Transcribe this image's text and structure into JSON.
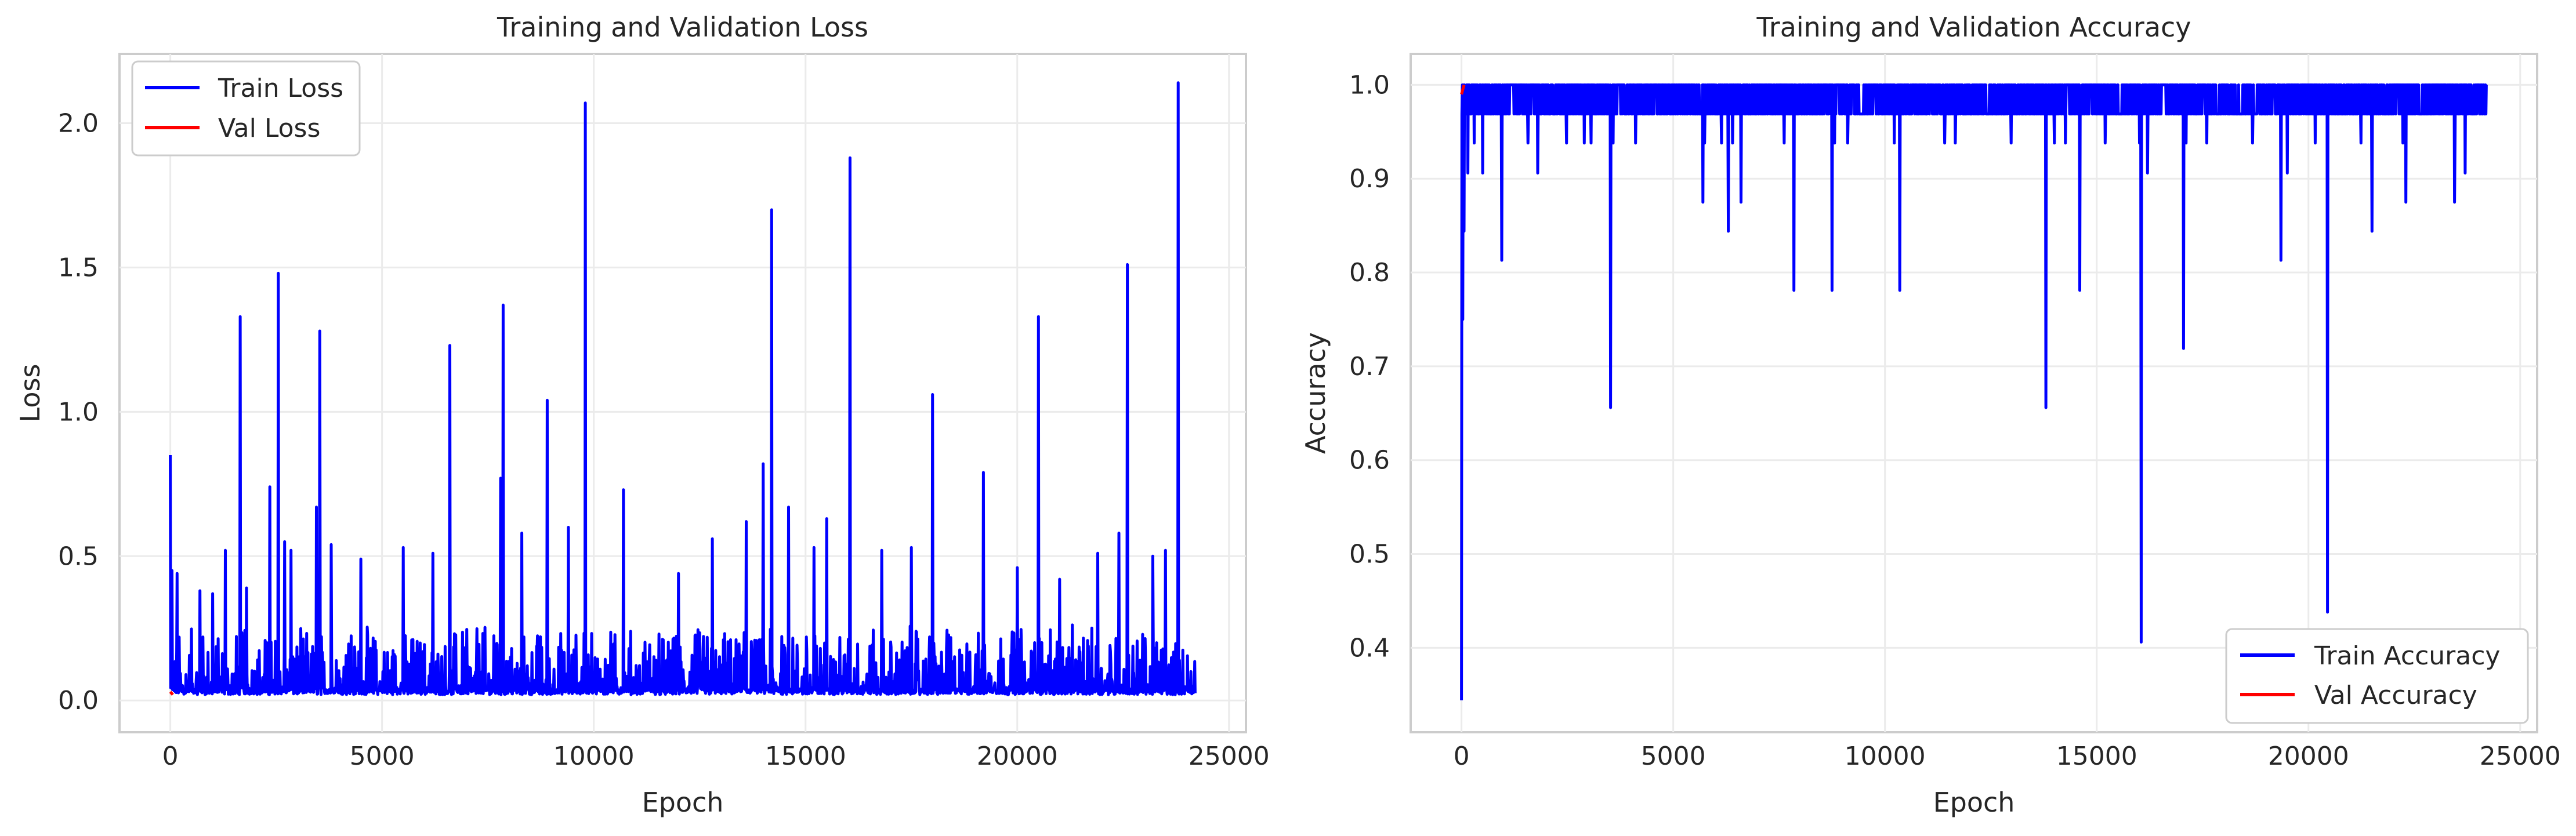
{
  "figure": {
    "background": "#ffffff"
  },
  "chart_data": [
    {
      "type": "line",
      "title": "Training and Validation Loss",
      "xlabel": "Epoch",
      "ylabel": "Loss",
      "xlim": [
        -1200,
        25400
      ],
      "ylim": [
        -0.11,
        2.24
      ],
      "xticks": [
        0,
        5000,
        10000,
        15000,
        20000,
        25000
      ],
      "xtick_labels": [
        "0",
        "5000",
        "10000",
        "15000",
        "20000",
        "25000"
      ],
      "yticks": [
        0.0,
        0.5,
        1.0,
        1.5,
        2.0
      ],
      "ytick_labels": [
        "0.0",
        "0.5",
        "1.0",
        "1.5",
        "2.0"
      ],
      "grid": true,
      "legend_position": "upper left",
      "series": [
        {
          "name": "Train Loss",
          "color": "#0000ff",
          "x_range": [
            0,
            24200
          ],
          "baseline": 0.02,
          "noise": 0.16,
          "spikes": [
            [
              0,
              0.85
            ],
            [
              40,
              0.45
            ],
            [
              160,
              0.44
            ],
            [
              700,
              0.38
            ],
            [
              1000,
              0.37
            ],
            [
              1300,
              0.52
            ],
            [
              1650,
              1.33
            ],
            [
              1800,
              0.39
            ],
            [
              2350,
              0.74
            ],
            [
              2550,
              1.48
            ],
            [
              2700,
              0.55
            ],
            [
              2850,
              0.52
            ],
            [
              3450,
              0.67
            ],
            [
              3530,
              1.28
            ],
            [
              3800,
              0.54
            ],
            [
              4500,
              0.49
            ],
            [
              5500,
              0.53
            ],
            [
              6200,
              0.51
            ],
            [
              6600,
              1.23
            ],
            [
              7800,
              0.77
            ],
            [
              7860,
              1.37
            ],
            [
              8300,
              0.58
            ],
            [
              8900,
              1.04
            ],
            [
              9400,
              0.6
            ],
            [
              9800,
              2.07
            ],
            [
              10700,
              0.73
            ],
            [
              12000,
              0.44
            ],
            [
              12800,
              0.56
            ],
            [
              13600,
              0.62
            ],
            [
              14000,
              0.82
            ],
            [
              14200,
              1.7
            ],
            [
              14600,
              0.67
            ],
            [
              15200,
              0.53
            ],
            [
              15500,
              0.63
            ],
            [
              16050,
              1.88
            ],
            [
              16800,
              0.52
            ],
            [
              17500,
              0.53
            ],
            [
              18000,
              1.06
            ],
            [
              19200,
              0.79
            ],
            [
              20000,
              0.46
            ],
            [
              20500,
              1.33
            ],
            [
              21000,
              0.42
            ],
            [
              21900,
              0.51
            ],
            [
              22400,
              0.58
            ],
            [
              22600,
              1.51
            ],
            [
              23200,
              0.5
            ],
            [
              23500,
              0.52
            ],
            [
              23800,
              2.14
            ],
            [
              24100,
              0.1
            ]
          ]
        },
        {
          "name": "Val Loss",
          "color": "#ff0000",
          "x": [
            0,
            60
          ],
          "y": [
            0.03,
            0.02
          ]
        }
      ]
    },
    {
      "type": "line",
      "title": "Training and Validation Accuracy",
      "xlabel": "Epoch",
      "ylabel": "Accuracy",
      "xlim": [
        -1200,
        25400
      ],
      "ylim": [
        0.31,
        1.033
      ],
      "xticks": [
        0,
        5000,
        10000,
        15000,
        20000,
        25000
      ],
      "xtick_labels": [
        "0",
        "5000",
        "10000",
        "15000",
        "20000",
        "25000"
      ],
      "yticks": [
        0.4,
        0.5,
        0.6,
        0.7,
        0.8,
        0.9,
        1.0
      ],
      "ytick_labels": [
        "0.4",
        "0.5",
        "0.6",
        "0.7",
        "0.8",
        "0.9",
        "1.0"
      ],
      "grid": true,
      "legend_position": "lower right",
      "series": [
        {
          "name": "Train Accuracy",
          "color": "#0000ff",
          "x_range": [
            0,
            24200
          ],
          "high": 1.0,
          "low": 0.969,
          "dips": [
            [
              0,
              0.344
            ],
            [
              30,
              0.75
            ],
            [
              60,
              0.844
            ],
            [
              150,
              0.906
            ],
            [
              500,
              0.906
            ],
            [
              950,
              0.813
            ],
            [
              1800,
              0.906
            ],
            [
              3520,
              0.656
            ],
            [
              5700,
              0.875
            ],
            [
              6300,
              0.844
            ],
            [
              6600,
              0.875
            ],
            [
              7850,
              0.781
            ],
            [
              8750,
              0.781
            ],
            [
              10350,
              0.781
            ],
            [
              13800,
              0.656
            ],
            [
              14600,
              0.781
            ],
            [
              16050,
              0.406
            ],
            [
              16200,
              0.906
            ],
            [
              17050,
              0.719
            ],
            [
              19350,
              0.813
            ],
            [
              19500,
              0.906
            ],
            [
              20450,
              0.438
            ],
            [
              21500,
              0.844
            ],
            [
              22300,
              0.875
            ],
            [
              23450,
              0.875
            ],
            [
              23700,
              0.906
            ]
          ]
        },
        {
          "name": "Val Accuracy",
          "color": "#ff0000",
          "x": [
            0,
            60
          ],
          "y": [
            0.99,
            1.0
          ]
        }
      ]
    }
  ]
}
